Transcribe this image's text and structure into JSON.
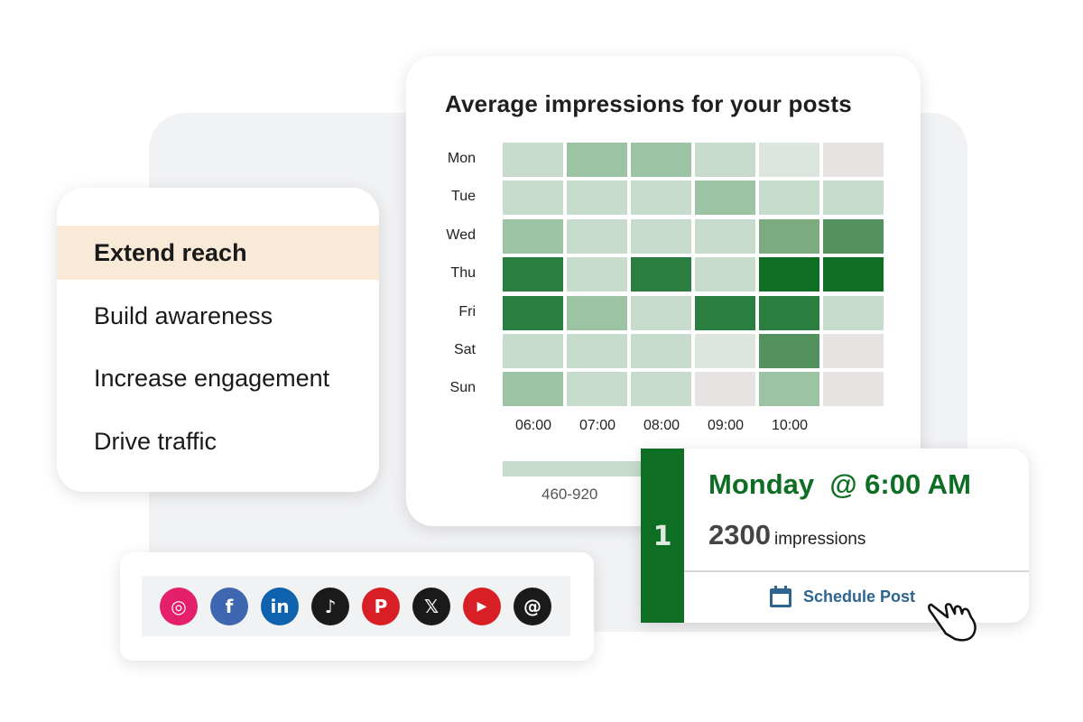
{
  "goals": {
    "items": [
      {
        "label": "Extend reach",
        "active": true
      },
      {
        "label": "Build awareness",
        "active": false
      },
      {
        "label": "Increase engagement",
        "active": false
      },
      {
        "label": "Drive traffic",
        "active": false
      }
    ]
  },
  "chart_data": {
    "type": "heatmap",
    "title": "Average impressions for your posts",
    "rows": [
      "Mon",
      "Tue",
      "Wed",
      "Thu",
      "Fri",
      "Sat",
      "Sun"
    ],
    "columns": [
      "06:00",
      "07:00",
      "08:00",
      "09:00",
      "10:00",
      ""
    ],
    "intensity_scale": [
      0,
      7
    ],
    "values": [
      [
        2,
        3,
        3,
        2,
        1,
        0
      ],
      [
        2,
        2,
        2,
        3,
        2,
        2
      ],
      [
        3,
        2,
        2,
        2,
        4,
        5
      ],
      [
        6,
        2,
        6,
        2,
        7,
        7
      ],
      [
        6,
        3,
        2,
        6,
        6,
        2
      ],
      [
        2,
        2,
        2,
        1,
        5,
        0
      ],
      [
        3,
        2,
        2,
        0,
        3,
        0
      ]
    ],
    "palette": [
      "#e6e3e2",
      "#dce6de",
      "#c8dccd",
      "#9cc4a4",
      "#7dab80",
      "#53925f",
      "#2a7f40",
      "#0e6e24"
    ],
    "legend": {
      "label": "460-920",
      "color": "#c8dccd"
    }
  },
  "recommendation": {
    "rank": "1",
    "when": "Monday  @ 6:00 AM",
    "impressions_value": "2300",
    "impressions_label": "impressions",
    "action_label": "Schedule Post",
    "action_icon": "calendar-icon",
    "accent": "#0e6e24",
    "link_color": "#2b6590"
  },
  "social": [
    {
      "name": "instagram",
      "color": "#e4206b"
    },
    {
      "name": "facebook",
      "color": "#3f66b0"
    },
    {
      "name": "linkedin",
      "color": "#0e62ae"
    },
    {
      "name": "tiktok",
      "color": "#1a1a1a"
    },
    {
      "name": "pinterest",
      "color": "#d91f26"
    },
    {
      "name": "x",
      "color": "#1a1a1a"
    },
    {
      "name": "youtube",
      "color": "#d91f26"
    },
    {
      "name": "threads",
      "color": "#1a1a1a"
    }
  ]
}
